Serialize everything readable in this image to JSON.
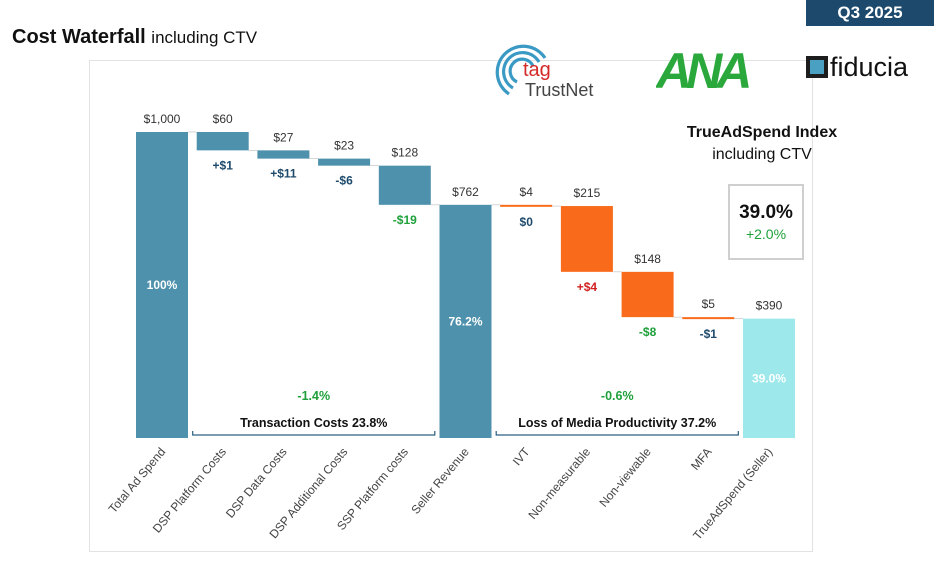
{
  "header": {
    "badge": "Q3 2025",
    "title_bold": "Cost Waterfall",
    "title_rest": "including CTV"
  },
  "logos": {
    "tag_text_top": "tag",
    "tag_text_bottom": "TrustNet",
    "ana_text": "ANA",
    "fiducia_text": "fiducia"
  },
  "index": {
    "title": "TrueAdSpend Index",
    "subtitle": "including CTV",
    "value": "39.0%",
    "delta": "+2.0%"
  },
  "colors": {
    "blue": "#4e91ad",
    "orange": "#f96b1a",
    "cyan": "#9ce8ea",
    "green": "#1fa03a",
    "red": "#d11f1f",
    "dark": "#1d4a6c"
  },
  "chart_data": {
    "type": "bar",
    "subtype": "waterfall",
    "title": "Cost Waterfall including CTV",
    "categories": [
      "Total Ad Spend",
      "DSP Platform Costs",
      "DSP Data Costs",
      "DSP Additional Costs",
      "SSP Platform costs",
      "Seller Revenue",
      "IVT",
      "Non-measurable",
      "Non-viewable",
      "MFA",
      "TrueAdSpend (Seller)"
    ],
    "bars": [
      {
        "label": "Total Ad Spend",
        "kind": "total",
        "color": "blue",
        "start": 0,
        "end": 1000,
        "value_label": "$1,000",
        "inside_label": "100%"
      },
      {
        "label": "DSP Platform Costs",
        "kind": "step",
        "color": "blue",
        "start": 1000,
        "end": 940,
        "value_label": "$60",
        "change_label": "+$1",
        "change_color": "dark"
      },
      {
        "label": "DSP Data Costs",
        "kind": "step",
        "color": "blue",
        "start": 940,
        "end": 913,
        "value_label": "$27",
        "change_label": "+$11",
        "change_color": "dark"
      },
      {
        "label": "DSP Additional Costs",
        "kind": "step",
        "color": "blue",
        "start": 913,
        "end": 890,
        "value_label": "$23",
        "change_label": "-$6",
        "change_color": "dark"
      },
      {
        "label": "SSP Platform costs",
        "kind": "step",
        "color": "blue",
        "start": 890,
        "end": 762,
        "value_label": "$128",
        "change_label": "-$19",
        "change_color": "green"
      },
      {
        "label": "Seller Revenue",
        "kind": "total",
        "color": "blue",
        "start": 0,
        "end": 762,
        "value_label": "$762",
        "inside_label": "76.2%"
      },
      {
        "label": "IVT",
        "kind": "step",
        "color": "orange",
        "start": 762,
        "end": 758,
        "value_label": "$4",
        "change_label": "$0",
        "change_color": "dark"
      },
      {
        "label": "Non-measurable",
        "kind": "step",
        "color": "orange",
        "start": 758,
        "end": 543,
        "value_label": "$215",
        "change_label": "+$4",
        "change_color": "red"
      },
      {
        "label": "Non-viewable",
        "kind": "step",
        "color": "orange",
        "start": 543,
        "end": 395,
        "value_label": "$148",
        "change_label": "-$8",
        "change_color": "green"
      },
      {
        "label": "MFA",
        "kind": "step",
        "color": "orange",
        "start": 395,
        "end": 390,
        "value_label": "$5",
        "change_label": "-$1",
        "change_color": "dark"
      },
      {
        "label": "TrueAdSpend (Seller)",
        "kind": "total",
        "color": "cyan",
        "start": 0,
        "end": 390,
        "value_label": "$390",
        "inside_label": "39.0%"
      }
    ],
    "groups": [
      {
        "label": "Transaction Costs 23.8%",
        "change": "-1.4%",
        "from": 1,
        "to": 4
      },
      {
        "label": "Loss of Media Productivity 37.2%",
        "change": "-0.6%",
        "from": 6,
        "to": 9
      }
    ],
    "ylim": [
      0,
      1000
    ]
  }
}
